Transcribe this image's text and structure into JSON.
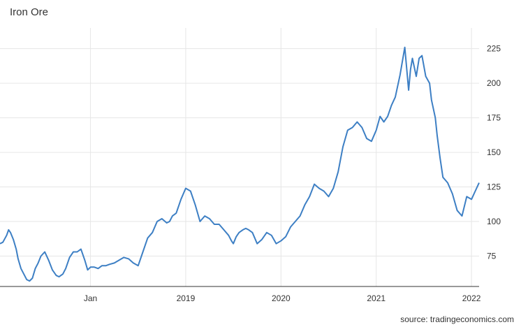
{
  "title": "Iron Ore",
  "source": "source: tradingeconomics.com",
  "chart_data": {
    "type": "line",
    "title": "Iron Ore",
    "xlabel": "",
    "ylabel": "",
    "x_tick_labels": [
      "Jan",
      "2019",
      "2020",
      "2021",
      "2022"
    ],
    "x_tick_positions": [
      2018.0,
      2019.0,
      2020.0,
      2021.0,
      2022.0
    ],
    "y_ticks": [
      75,
      100,
      125,
      150,
      175,
      200,
      225
    ],
    "xlim": [
      2017.05,
      2022.08
    ],
    "ylim": [
      53,
      240
    ],
    "grid": true,
    "line_color": "#3d7fc4",
    "series": [
      {
        "x": [
          2017.05,
          2017.08,
          2017.12,
          2017.14,
          2017.16,
          2017.19,
          2017.22,
          2017.24,
          2017.27,
          2017.3,
          2017.33,
          2017.36,
          2017.39,
          2017.42,
          2017.45,
          2017.48,
          2017.52,
          2017.56,
          2017.6,
          2017.64,
          2017.67,
          2017.71,
          2017.74,
          2017.78,
          2017.82,
          2017.86,
          2017.9,
          2017.94,
          2017.97,
          2018.0,
          2018.04,
          2018.08,
          2018.12,
          2018.16,
          2018.2,
          2018.25,
          2018.3,
          2018.35,
          2018.4,
          2018.45,
          2018.5,
          2018.55,
          2018.6,
          2018.65,
          2018.7,
          2018.75,
          2018.8,
          2018.83,
          2018.86,
          2018.9,
          2018.95,
          2019.0,
          2019.05,
          2019.1,
          2019.15,
          2019.2,
          2019.25,
          2019.3,
          2019.35,
          2019.4,
          2019.45,
          2019.48,
          2019.5,
          2019.53,
          2019.56,
          2019.6,
          2019.63,
          2019.66,
          2019.7,
          2019.75,
          2019.8,
          2019.85,
          2019.9,
          2019.95,
          2020.0,
          2020.05,
          2020.1,
          2020.15,
          2020.2,
          2020.25,
          2020.3,
          2020.35,
          2020.4,
          2020.45,
          2020.5,
          2020.55,
          2020.6,
          2020.65,
          2020.7,
          2020.75,
          2020.8,
          2020.85,
          2020.9,
          2020.95,
          2021.0,
          2021.04,
          2021.08,
          2021.12,
          2021.16,
          2021.2,
          2021.25,
          2021.3,
          2021.34,
          2021.36,
          2021.38,
          2021.42,
          2021.45,
          2021.48,
          2021.52,
          2021.56,
          2021.58,
          2021.62,
          2021.64,
          2021.67,
          2021.7,
          2021.75,
          2021.8,
          2021.85,
          2021.9,
          2021.95,
          2022.0,
          2022.04,
          2022.08
        ],
        "y": [
          84,
          85,
          90,
          94,
          92,
          87,
          80,
          73,
          66,
          62,
          58,
          57,
          59,
          66,
          70,
          75,
          78,
          72,
          65,
          61,
          60,
          62,
          66,
          74,
          78,
          78,
          80,
          72,
          65,
          67,
          67,
          66,
          68,
          68,
          69,
          70,
          72,
          74,
          73,
          70,
          68,
          78,
          88,
          92,
          100,
          102,
          99,
          100,
          104,
          106,
          116,
          124,
          122,
          112,
          100,
          104,
          102,
          98,
          98,
          94,
          90,
          86,
          84,
          89,
          92,
          94,
          95,
          94,
          92,
          84,
          87,
          92,
          90,
          84,
          86,
          89,
          96,
          100,
          104,
          112,
          118,
          127,
          124,
          122,
          118,
          124,
          136,
          154,
          166,
          168,
          172,
          168,
          160,
          158,
          166,
          176,
          172,
          176,
          184,
          190,
          206,
          226,
          195,
          210,
          218,
          205,
          218,
          220,
          205,
          200,
          188,
          175,
          162,
          146,
          132,
          128,
          120,
          108,
          104,
          118,
          116,
          122,
          128
        ]
      }
    ]
  }
}
